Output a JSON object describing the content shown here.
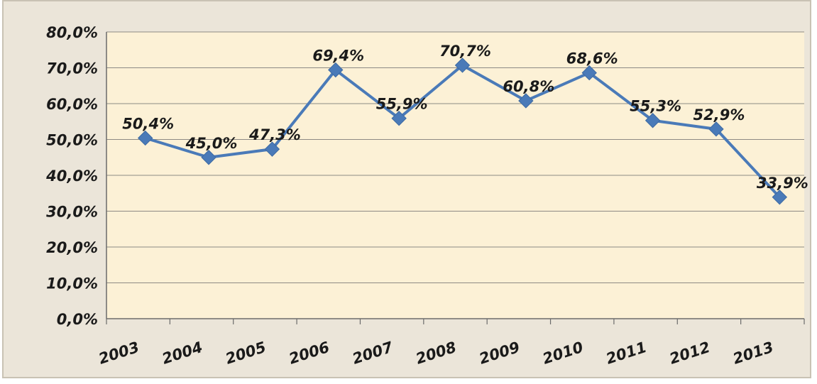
{
  "chart_data": {
    "type": "line",
    "title": "",
    "xlabel": "",
    "ylabel": "",
    "categories": [
      "2003",
      "2004",
      "2005",
      "2006",
      "2007",
      "2008",
      "2009",
      "2010",
      "2011",
      "2012",
      "2013"
    ],
    "series": [
      {
        "values": [
          50.4,
          45.0,
          47.3,
          69.4,
          55.9,
          70.7,
          60.8,
          68.6,
          55.3,
          52.9,
          33.9
        ],
        "labels": [
          "50,4%",
          "45,0%",
          "47,3%",
          "69,4%",
          "55,9%",
          "70,7%",
          "60,8%",
          "68,6%",
          "55,3%",
          "52,9%",
          "33,9%"
        ],
        "color": "#4a7ab8"
      }
    ],
    "ylim": [
      0,
      80
    ],
    "yticks": [
      "0,0%",
      "10,0%",
      "20,0%",
      "30,0%",
      "40,0%",
      "50,0%",
      "60,0%",
      "70,0%",
      "80,0%"
    ],
    "grid": true,
    "legend": "none",
    "background_color": "#fcf1d6",
    "frame_color": "#ebe5d9"
  }
}
